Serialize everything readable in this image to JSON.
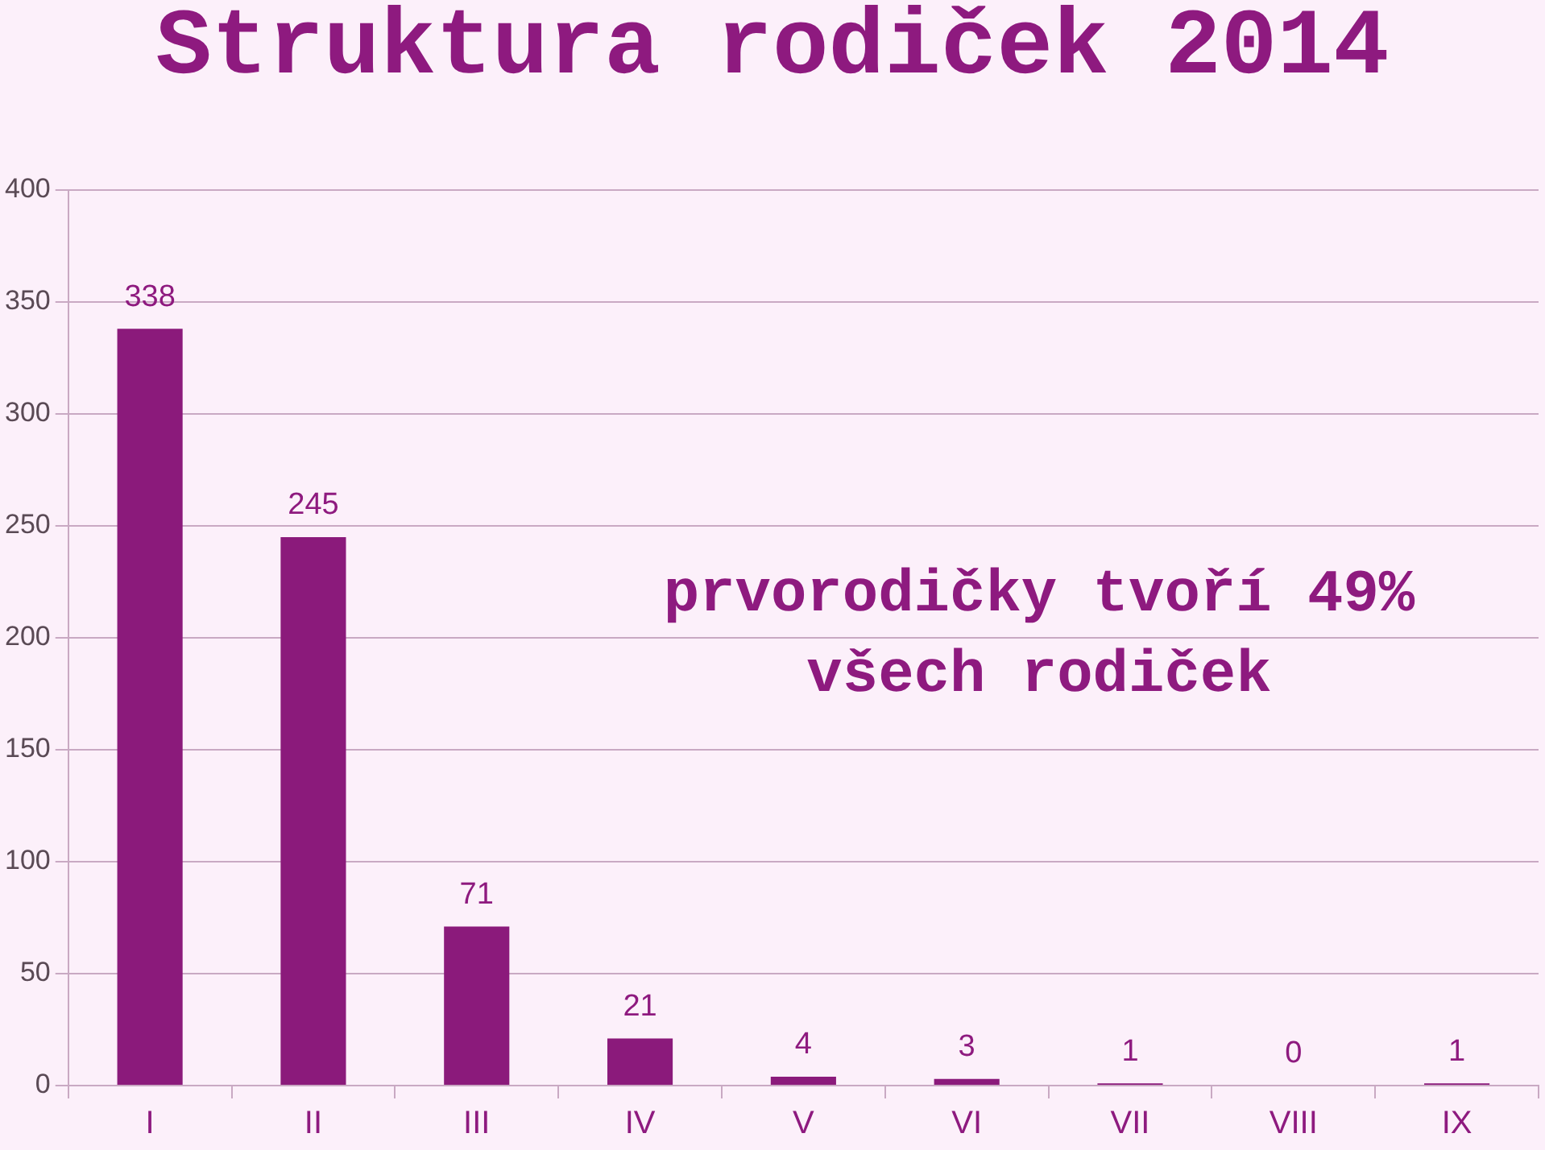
{
  "chart_data": {
    "type": "bar",
    "title": "Struktura rodiček 2014",
    "categories": [
      "I",
      "II",
      "III",
      "IV",
      "V",
      "VI",
      "VII",
      "VIII",
      "IX"
    ],
    "values": [
      338,
      245,
      71,
      21,
      4,
      3,
      1,
      0,
      1
    ],
    "color": "#8b1a7b",
    "ylim": [
      0,
      400
    ],
    "yticks": [
      0,
      50,
      100,
      150,
      200,
      250,
      300,
      350,
      400
    ],
    "grid": "y",
    "legend": false,
    "data_labels": true,
    "annotations": [
      "prvorodičky tvoří 49% všech rodiček"
    ]
  }
}
